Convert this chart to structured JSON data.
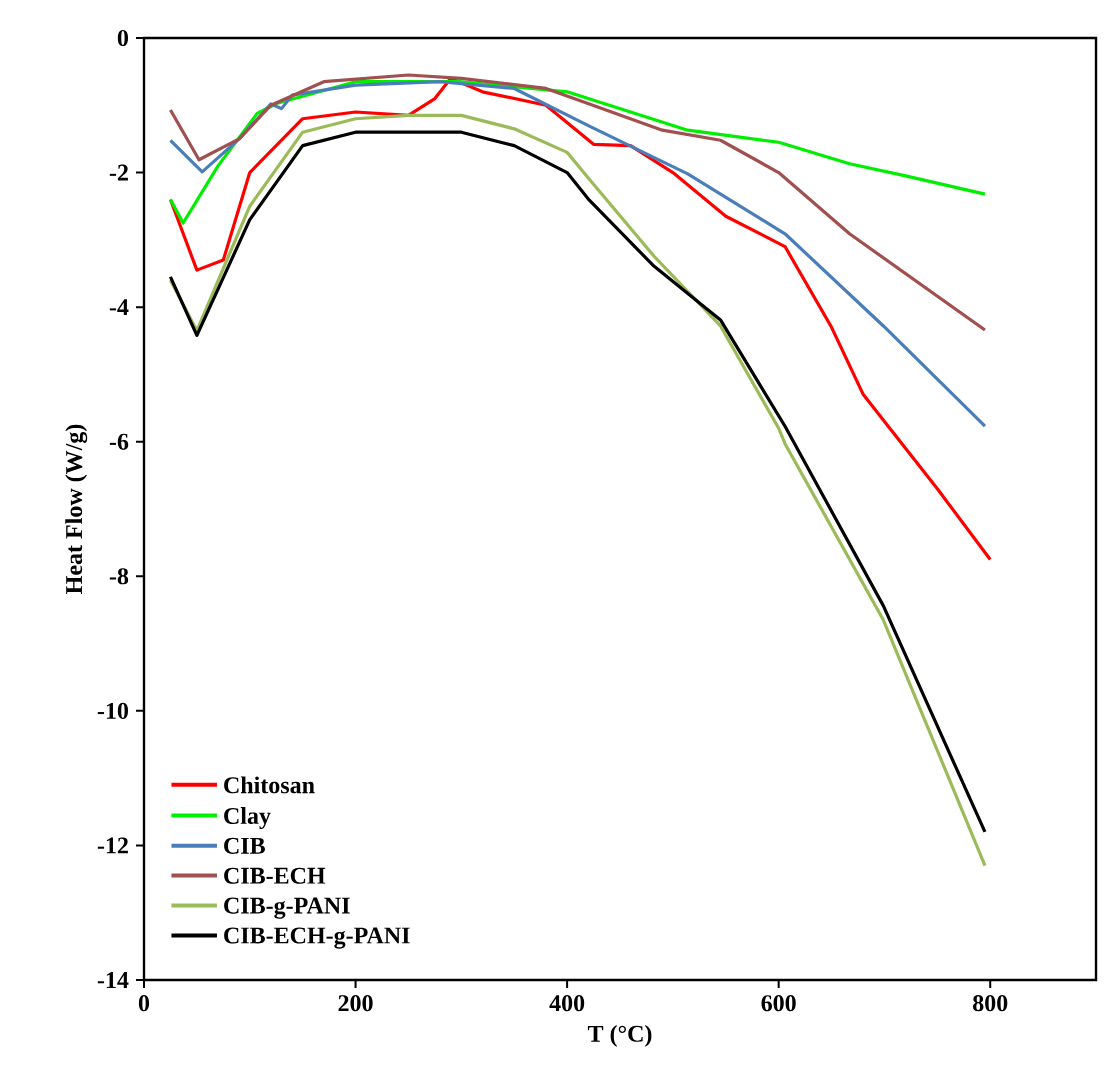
{
  "chart_data": {
    "type": "line",
    "xlabel": "T (°C)",
    "ylabel": "Heat Flow (W/g)",
    "xlim": [
      0,
      900
    ],
    "ylim": [
      -14,
      0
    ],
    "xticks": [
      0,
      200,
      400,
      600,
      800
    ],
    "yticks": [
      -14,
      -12,
      -10,
      -8,
      -6,
      -4,
      -2,
      0
    ],
    "legend": "bottom left",
    "grid": false,
    "marker": "none",
    "line_style": "solid",
    "series": [
      {
        "name": "Chitosan",
        "color": "#ff0000",
        "x": [
          25,
          50,
          75,
          100,
          150,
          200,
          250,
          275,
          290,
          320,
          380,
          425,
          460,
          500,
          550,
          606,
          650,
          680,
          700,
          750,
          800
        ],
        "values": [
          -2.4,
          -3.45,
          -3.3,
          -2.0,
          -1.2,
          -1.1,
          -1.15,
          -0.9,
          -0.6,
          -0.8,
          -1.0,
          -1.58,
          -1.6,
          -2.0,
          -2.65,
          -3.1,
          -4.3,
          -5.3,
          -5.7,
          -6.7,
          -7.75
        ]
      },
      {
        "name": "Clay",
        "color": "#00ee00",
        "x": [
          25,
          37,
          70,
          107,
          126,
          200,
          300,
          400,
          500,
          514,
          600,
          667,
          720,
          795
        ],
        "values": [
          -2.4,
          -2.75,
          -1.9,
          -1.12,
          -0.97,
          -0.65,
          -0.65,
          -0.8,
          -1.3,
          -1.37,
          -1.55,
          -1.87,
          -2.05,
          -2.32
        ]
      },
      {
        "name": "CIB",
        "color": "#4a7ebb",
        "x": [
          25,
          55,
          90,
          120,
          130,
          140,
          200,
          280,
          350,
          421,
          514,
          606,
          699,
          795
        ],
        "values": [
          -1.52,
          -1.99,
          -1.5,
          -0.98,
          -1.05,
          -0.85,
          -0.7,
          -0.65,
          -0.75,
          -1.31,
          -2.02,
          -2.91,
          -4.28,
          -5.77
        ]
      },
      {
        "name": "CIB-ECH",
        "color": "#a0504e",
        "x": [
          25,
          52,
          90,
          120,
          170,
          250,
          300,
          380,
          421,
          490,
          545,
          600,
          667,
          795
        ],
        "values": [
          -1.07,
          -1.81,
          -1.5,
          -1.0,
          -0.65,
          -0.55,
          -0.6,
          -0.75,
          -0.98,
          -1.37,
          -1.52,
          -2.0,
          -2.91,
          -4.34
        ]
      },
      {
        "name": "CIB-g-PANI",
        "color": "#9bbb59",
        "x": [
          25,
          50,
          100,
          150,
          200,
          250,
          300,
          350,
          400,
          421,
          482,
          545,
          600,
          606,
          699,
          795
        ],
        "values": [
          -3.6,
          -4.35,
          -2.5,
          -1.4,
          -1.2,
          -1.15,
          -1.15,
          -1.35,
          -1.7,
          -2.1,
          -3.24,
          -4.28,
          -5.8,
          -6.03,
          -8.65,
          -12.3
        ]
      },
      {
        "name": "CIB-ECH-g-PANI",
        "color": "#000000",
        "x": [
          25,
          50,
          100,
          150,
          200,
          300,
          350,
          400,
          421,
          482,
          545,
          606,
          699,
          795
        ],
        "values": [
          -3.55,
          -4.42,
          -2.7,
          -1.6,
          -1.4,
          -1.4,
          -1.6,
          -2.0,
          -2.41,
          -3.39,
          -4.19,
          -5.77,
          -8.44,
          -11.8
        ]
      }
    ]
  }
}
